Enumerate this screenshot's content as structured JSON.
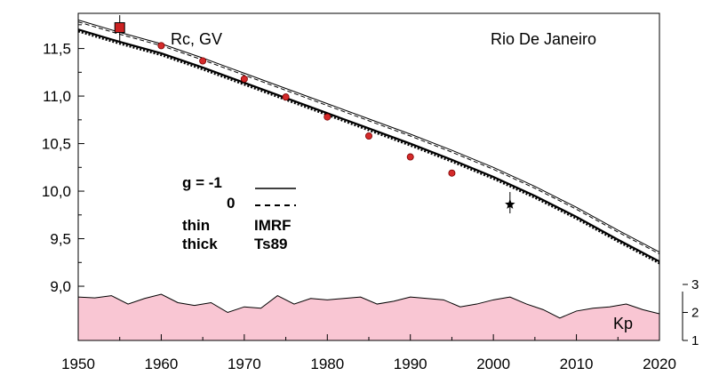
{
  "chart_data": {
    "type": "line",
    "title": "",
    "annotations": {
      "quantity": "Rc, GV",
      "station": "Rio De Janeiro",
      "kp_label": "Kp"
    },
    "legend": {
      "g_label": "g  = -1",
      "g_zero": "0",
      "thin_label": "thin",
      "thick_label": "thick",
      "imrf_label": "IMRF",
      "ts89_label": "Ts89",
      "placement": "center-left"
    },
    "x_axis": {
      "range": [
        1950,
        2020
      ],
      "ticks": [
        1950,
        1960,
        1970,
        1980,
        1990,
        2000,
        2010,
        2020
      ],
      "tick_labels": [
        "1950",
        "1960",
        "1970",
        "1980",
        "1990",
        "2000",
        "2010",
        "2020"
      ]
    },
    "y_axis": {
      "range": [
        8.43,
        11.87
      ],
      "ticks": [
        9.0,
        9.5,
        10.0,
        10.5,
        11.0,
        11.5
      ],
      "tick_labels": [
        "9,0",
        "9,5",
        "10,0",
        "10,5",
        "11,0",
        "11,5"
      ]
    },
    "kp_axis": {
      "range": [
        1,
        3
      ],
      "tick_labels": [
        "1",
        "2",
        "3"
      ]
    },
    "x": [
      1950,
      1955,
      1960,
      1965,
      1970,
      1975,
      1980,
      1985,
      1990,
      1995,
      2000,
      2005,
      2010,
      2015,
      2020
    ],
    "series": [
      {
        "style": "thin-solid",
        "values": [
          11.8,
          11.67,
          11.55,
          11.4,
          11.24,
          11.08,
          10.92,
          10.76,
          10.6,
          10.43,
          10.25,
          10.05,
          9.83,
          9.59,
          9.36
        ]
      },
      {
        "style": "thin-dashed",
        "values": [
          11.78,
          11.65,
          11.53,
          11.38,
          11.22,
          11.06,
          10.9,
          10.74,
          10.58,
          10.41,
          10.23,
          10.03,
          9.81,
          9.57,
          9.34
        ]
      },
      {
        "style": "thick-solid",
        "values": [
          11.7,
          11.57,
          11.45,
          11.3,
          11.14,
          10.98,
          10.82,
          10.66,
          10.5,
          10.33,
          10.15,
          9.95,
          9.73,
          9.49,
          9.26
        ]
      },
      {
        "style": "thick-dotted",
        "values": [
          11.68,
          11.55,
          11.43,
          11.28,
          11.12,
          10.96,
          10.8,
          10.64,
          10.48,
          10.31,
          10.13,
          9.93,
          9.71,
          9.47,
          9.24
        ]
      }
    ],
    "measurements": [
      {
        "x": 1960,
        "y": 11.53
      },
      {
        "x": 1965,
        "y": 11.37
      },
      {
        "x": 1970,
        "y": 11.18
      },
      {
        "x": 1975,
        "y": 10.99
      },
      {
        "x": 1980,
        "y": 10.78
      },
      {
        "x": 1985,
        "y": 10.58
      },
      {
        "x": 1990,
        "y": 10.36
      },
      {
        "x": 1995,
        "y": 10.19
      }
    ],
    "square_marker": {
      "x": 1955,
      "y": 11.72
    },
    "star_marker": {
      "x": 2002,
      "y": 9.86
    },
    "kp_series": {
      "x": [
        1950,
        1952,
        1954,
        1956,
        1958,
        1960,
        1962,
        1964,
        1966,
        1968,
        1970,
        1972,
        1974,
        1976,
        1978,
        1980,
        1982,
        1984,
        1986,
        1988,
        1990,
        1992,
        1994,
        1996,
        1998,
        2000,
        2002,
        2004,
        2006,
        2008,
        2010,
        2012,
        2014,
        2016,
        2018,
        2020
      ],
      "values": [
        2.55,
        2.52,
        2.6,
        2.3,
        2.5,
        2.65,
        2.35,
        2.25,
        2.35,
        2.0,
        2.2,
        2.15,
        2.6,
        2.3,
        2.5,
        2.45,
        2.5,
        2.55,
        2.3,
        2.4,
        2.55,
        2.5,
        2.45,
        2.2,
        2.3,
        2.45,
        2.55,
        2.3,
        2.1,
        1.8,
        2.05,
        2.15,
        2.2,
        2.3,
        2.1,
        1.95
      ],
      "color": "#f9c6d3"
    }
  }
}
